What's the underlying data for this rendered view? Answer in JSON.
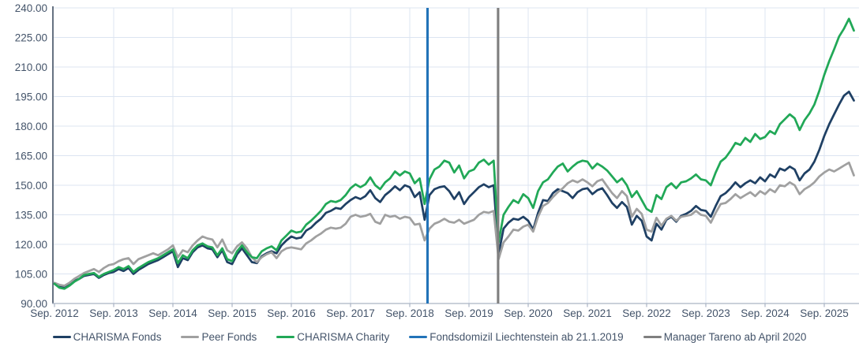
{
  "chart_data": {
    "type": "line",
    "title": "",
    "frequency": "monthly",
    "x_start": "Sep 2012",
    "x_tick_labels": [
      "Sep. 2012",
      "Sep. 2013",
      "Sep. 2014",
      "Sep. 2015",
      "Sep. 2016",
      "Sep. 2017",
      "Sep. 2018",
      "Sep. 2019",
      "Sep. 2020",
      "Sep. 2021",
      "Sep. 2022",
      "Sep. 2023",
      "Sep. 2024",
      "Sep. 2025"
    ],
    "y_axis": {
      "min": 90,
      "max": 240,
      "step": 15,
      "label_format": "0.00"
    },
    "grid": true,
    "legend_position": "bottom",
    "series": [
      {
        "name": "CHARISMA Fonds",
        "color": "#1f4064",
        "values": [
          100,
          98.5,
          98,
          99.5,
          101.5,
          102.5,
          104,
          104.5,
          105,
          103,
          104.5,
          105.5,
          106,
          107.5,
          106.5,
          108,
          105,
          107,
          108.5,
          110,
          111,
          112,
          113.5,
          115,
          116.5,
          108.5,
          113,
          112,
          116,
          118.5,
          119.5,
          118,
          117.5,
          113.5,
          117,
          111,
          110,
          115,
          118,
          114.5,
          111,
          110.5,
          114,
          115.5,
          116.5,
          115.5,
          119.5,
          122,
          124,
          123,
          123.5,
          127,
          128.5,
          131,
          133,
          136,
          137,
          138.5,
          138,
          140.5,
          142.5,
          144,
          143,
          144.5,
          147.5,
          143.5,
          141.5,
          145,
          147,
          149.5,
          147.5,
          150,
          149,
          144,
          146.5,
          132.5,
          145,
          148,
          149,
          149.5,
          147,
          143,
          146.5,
          140.5,
          144,
          146.5,
          149,
          150.5,
          149,
          150,
          115,
          128,
          131,
          133,
          132.5,
          134,
          132,
          127.5,
          136,
          142.5,
          142,
          146,
          148,
          147,
          146,
          143.5,
          146.5,
          148,
          148.5,
          145.5,
          147.5,
          148.5,
          145,
          141,
          138.5,
          141.5,
          139,
          130,
          134.5,
          132,
          124,
          122,
          130.5,
          127.5,
          132.5,
          134,
          131.5,
          134.5,
          135.5,
          137,
          139.5,
          137.5,
          137,
          134,
          139.5,
          144.5,
          146,
          148.5,
          151.5,
          149,
          151,
          152.5,
          151,
          154,
          152,
          155.5,
          154,
          158.5,
          157.5,
          159.5,
          158,
          152.5,
          156,
          158,
          162,
          168,
          175,
          181,
          186,
          191,
          195.5,
          197.5,
          193
        ]
      },
      {
        "name": "Peer Fonds",
        "color": "#a0a0a0",
        "values": [
          100.5,
          99.5,
          99,
          100.5,
          102.5,
          104,
          105.5,
          106.5,
          107.5,
          106,
          108,
          109.5,
          110,
          111.5,
          112.5,
          113,
          110,
          112.5,
          113.5,
          114.5,
          115.5,
          114.5,
          116,
          117.5,
          119.5,
          113.5,
          117,
          116,
          119.5,
          122,
          124,
          123,
          122.5,
          118.5,
          122.5,
          117,
          115.5,
          119,
          121,
          118,
          113.5,
          111,
          113.5,
          115,
          116,
          113,
          116.5,
          118,
          118.5,
          118,
          117.5,
          120.5,
          122,
          124,
          125.5,
          127.5,
          128.5,
          128,
          128.5,
          130.5,
          134,
          135,
          134,
          134.5,
          135.5,
          131.5,
          130.5,
          135,
          134,
          134.5,
          133,
          134,
          133.5,
          130,
          130.5,
          122,
          128,
          130.5,
          131.5,
          133,
          131.5,
          131,
          132.5,
          130.5,
          131.5,
          132.5,
          135,
          136.5,
          136,
          137,
          112.5,
          121,
          124,
          127.5,
          127,
          129,
          130,
          126.5,
          134,
          139.5,
          141,
          144,
          146.5,
          148.5,
          151,
          152.5,
          151.5,
          153,
          151.5,
          149.5,
          152,
          153,
          149.5,
          146,
          143.5,
          147,
          144.5,
          134,
          138,
          135.5,
          127.5,
          126.5,
          133.5,
          129.5,
          133,
          134.5,
          132,
          134,
          134.5,
          135,
          137,
          135,
          134.5,
          131,
          136,
          140.5,
          141,
          143,
          145.5,
          143.5,
          145,
          146.5,
          144.5,
          147,
          145.5,
          148,
          146.5,
          150,
          149.5,
          151.5,
          150,
          145.5,
          148,
          149.5,
          151.5,
          154.5,
          156.5,
          158,
          157,
          158.5,
          160,
          161.5,
          155
        ]
      },
      {
        "name": "CHARISMA Charity",
        "color": "#21a857",
        "values": [
          100,
          98,
          97.5,
          99,
          101,
          102.5,
          104.5,
          105,
          105.5,
          103.5,
          105,
          106,
          107,
          108.5,
          107.5,
          109,
          106,
          108,
          109.5,
          111,
          112,
          113,
          114.5,
          116,
          117.5,
          110.5,
          114.5,
          113,
          117,
          119.5,
          120.5,
          119,
          118.5,
          114.5,
          118,
          112.5,
          111.5,
          116.5,
          119.5,
          116,
          113.5,
          113,
          116.5,
          118,
          119,
          117,
          122,
          124.5,
          127,
          126,
          126.5,
          130,
          132,
          134.5,
          137,
          140.5,
          142,
          141.5,
          142.5,
          145,
          148.5,
          150.5,
          149,
          150.5,
          154,
          150,
          148,
          151.5,
          153.5,
          157,
          155,
          157,
          156,
          151,
          153.5,
          140.5,
          153,
          158,
          159.5,
          162.5,
          161.5,
          156.5,
          160,
          153.5,
          157,
          158,
          161.5,
          163,
          160.5,
          162.5,
          121,
          135,
          139,
          142.5,
          141,
          145.5,
          143.5,
          138.5,
          147,
          151.5,
          153,
          156.5,
          159.5,
          161,
          157,
          159.5,
          161.5,
          162.5,
          162,
          158.5,
          161,
          159.5,
          157.5,
          154.5,
          151.5,
          153.5,
          150,
          144,
          147,
          142.5,
          138,
          136.5,
          145,
          143,
          149,
          151,
          148.5,
          151.5,
          152,
          153.5,
          155.5,
          153,
          152.5,
          150,
          156.5,
          162,
          164,
          167.5,
          171.5,
          170.5,
          174,
          172,
          176,
          173.5,
          174.5,
          177.5,
          176,
          181,
          183.5,
          186,
          184,
          178,
          183,
          186.5,
          191,
          198,
          206,
          213,
          219,
          225.5,
          229.5,
          234.5,
          228.5
        ]
      }
    ],
    "event_lines": [
      {
        "name": "Fondsdomizil Liechtenstein ab 21.1.2019",
        "color": "#2273b8",
        "month_index": 75.6
      },
      {
        "name": "Manager Tareno ab April 2020",
        "color": "#7f7f7f",
        "month_index": 89.9
      }
    ]
  },
  "colors": {
    "background": "#ffffff",
    "gridline": "#dce4f1",
    "axis_labels": "#44546a",
    "y_axis_line": "#566274",
    "x_axis_line": "#aab4c4"
  }
}
